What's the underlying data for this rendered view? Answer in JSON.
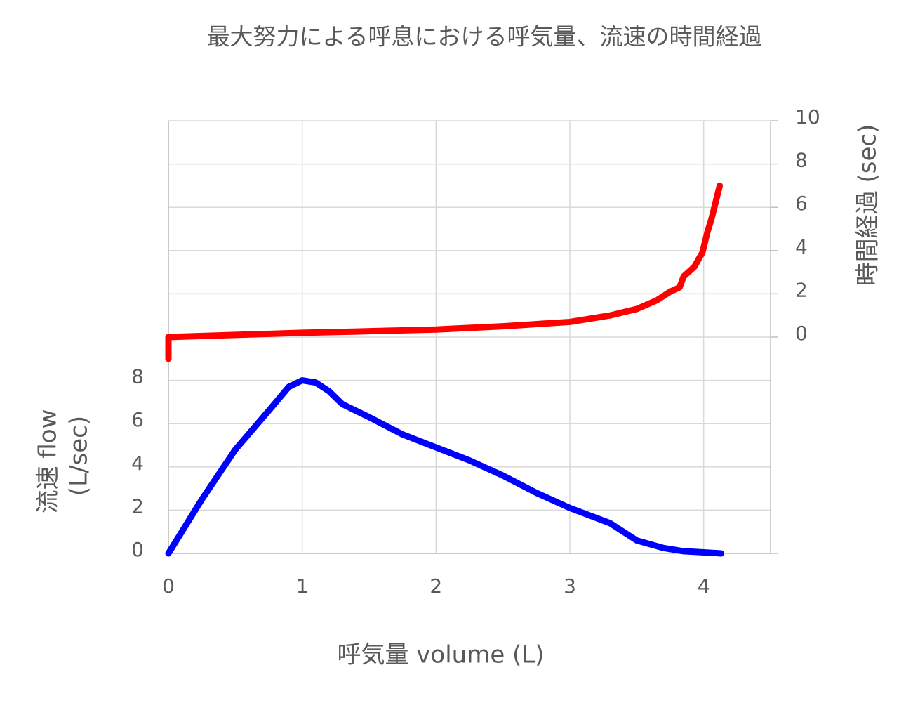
{
  "chart_data": {
    "type": "line",
    "title": "最大努力による呼息における呼気量、流速の時間経過",
    "x_label": "呼気量 volume (L)",
    "y_label": [
      "流速 flow",
      "(L/sec)"
    ],
    "y2_label": "時間経過 (sec)",
    "xlim": [
      0,
      4.5
    ],
    "xticks": [
      0,
      1,
      2,
      3,
      4
    ],
    "ylim": [
      0,
      20
    ],
    "yticks": [
      0,
      2,
      4,
      6,
      8
    ],
    "y2lim": [
      -10,
      10
    ],
    "y2ticks": [
      0,
      2,
      4,
      6,
      8,
      10
    ],
    "grid": true,
    "series": [
      {
        "color": "#ff0000",
        "axis": "y2",
        "x": [
          0,
          0,
          0.5,
          1,
          1.5,
          2,
          2.5,
          3,
          3.3,
          3.5,
          3.65,
          3.75,
          3.82,
          3.85,
          3.93,
          3.99,
          4.03,
          4.06,
          4.12
        ],
        "values": [
          -1,
          0,
          0.1,
          0.2,
          0.27,
          0.35,
          0.5,
          0.7,
          1.0,
          1.3,
          1.7,
          2.1,
          2.3,
          2.8,
          3.25,
          3.9,
          4.9,
          5.5,
          7.0
        ]
      },
      {
        "color": "#0000ff",
        "axis": "y",
        "x": [
          0,
          0.25,
          0.5,
          0.75,
          0.9,
          1,
          1.1,
          1.2,
          1.3,
          1.5,
          1.75,
          2,
          2.25,
          2.5,
          2.75,
          3,
          3.3,
          3.5,
          3.7,
          3.85,
          4.0,
          4.13
        ],
        "values": [
          0,
          2.5,
          4.8,
          6.6,
          7.7,
          8.0,
          7.9,
          7.5,
          6.9,
          6.3,
          5.5,
          4.9,
          4.3,
          3.6,
          2.8,
          2.1,
          1.4,
          0.6,
          0.25,
          0.1,
          0.05,
          0
        ]
      }
    ]
  }
}
